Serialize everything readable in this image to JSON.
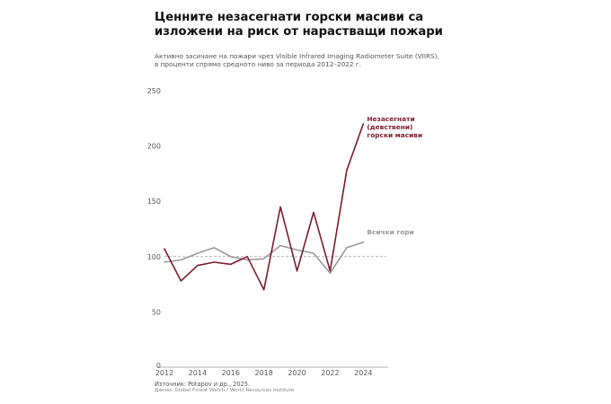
{
  "title_lines": [
    "Ценните незасегнати горски масиви са",
    "изложени на риск от нарастващи пожари"
  ],
  "subtitle_lines": [
    "Активно засичане на пожари чрез Visible Infrared Imaging Radiometer Suite (VIIRS),",
    "в проценти спрямо средното ниво за периода 2012–2022 г."
  ],
  "source": "Източник: Potapov и др., 2025.",
  "data_note": "Данни: Global Forest Watch / World Resources Institute",
  "chart_data": {
    "type": "line",
    "title": "Ценните незасегнати горски масиви са изложени на риск от нарастващи пожари",
    "xlim": [
      2012,
      2025.5
    ],
    "ylim": [
      0,
      250
    ],
    "x_ticks": [
      2012,
      2014,
      2016,
      2018,
      2020,
      2022,
      2024
    ],
    "y_ticks": [
      50,
      100,
      150,
      200,
      250
    ],
    "y_zero_label": "0",
    "baseline": 100,
    "x": [
      2012,
      2013,
      2014,
      2015,
      2016,
      2017,
      2018,
      2019,
      2020,
      2021,
      2022,
      2023,
      2024
    ],
    "series": [
      {
        "name": "Незасегнати (девствени) горски масиви",
        "label_lines": [
          "Незасегнати",
          "(девствени)",
          "горски масиви"
        ],
        "color": "#7b1c2c",
        "values": [
          107,
          78,
          92,
          95,
          93,
          100,
          70,
          145,
          87,
          140,
          87,
          178,
          220
        ]
      },
      {
        "name": "Всички гори",
        "label_lines": [
          "Всички гори"
        ],
        "color": "#999999",
        "values": [
          95,
          97,
          103,
          108,
          100,
          97,
          98,
          110,
          106,
          103,
          85,
          108,
          113
        ]
      }
    ]
  }
}
